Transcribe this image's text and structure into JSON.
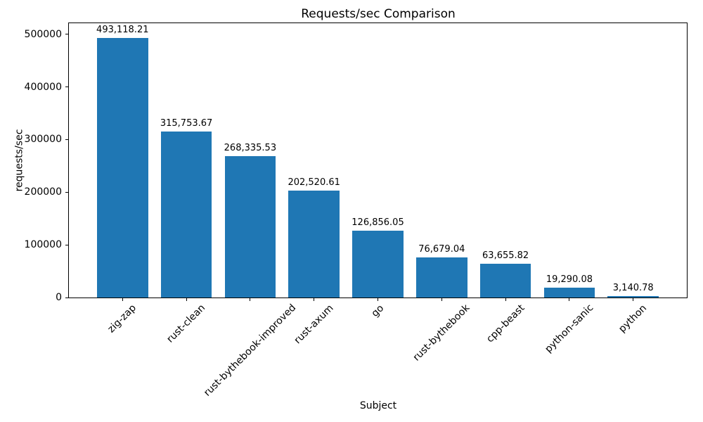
{
  "chart_data": {
    "type": "bar",
    "title": "Requests/sec Comparison",
    "xlabel": "Subject",
    "ylabel": "requests/sec",
    "categories": [
      "zig-zap",
      "rust-clean",
      "rust-bythebook-improved",
      "rust-axum",
      "go",
      "rust-bythebook",
      "cpp-beast",
      "python-sanic",
      "python"
    ],
    "values": [
      493118.21,
      315753.67,
      268335.53,
      202520.61,
      126856.05,
      76679.04,
      63655.82,
      19290.08,
      3140.78
    ],
    "value_labels": [
      "493,118.21",
      "315,753.67",
      "268,335.53",
      "202,520.61",
      "126,856.05",
      "76,679.04",
      "63,655.82",
      "19,290.08",
      "3,140.78"
    ],
    "yticks": [
      0,
      100000,
      200000,
      300000,
      400000,
      500000
    ],
    "ytick_labels": [
      "0",
      "100000",
      "200000",
      "300000",
      "400000",
      "500000"
    ],
    "ylim": [
      0,
      521100
    ],
    "xtick_rotation": 45,
    "bar_color": "#1f77b4",
    "text_color": "#000000",
    "grid": false,
    "legend_position": "none"
  }
}
